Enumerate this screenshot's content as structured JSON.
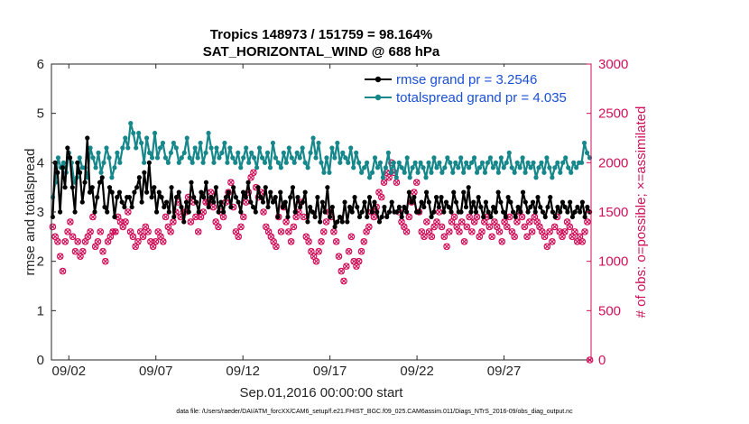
{
  "chart_data": {
    "type": "line",
    "title_line1": "Tropics 148973 / 151759 = 98.164%",
    "title_line2": "SAT_HORIZONTAL_WIND @ 688 hPa",
    "xlabel": "Sep.01,2016 00:00:00 start",
    "ylabel_left": "rmse and totalspread",
    "ylabel_right": "# of obs: o=possible; ×=assimilated",
    "xlim": [
      0,
      31
    ],
    "ylim_left": [
      0,
      6
    ],
    "ylim_right": [
      0,
      3000
    ],
    "x_tick_positions": [
      1,
      6,
      11,
      16,
      21,
      26
    ],
    "x_tick_labels": [
      "09/02",
      "09/07",
      "09/12",
      "09/17",
      "09/22",
      "09/27"
    ],
    "y_left_ticks": [
      "0",
      "1",
      "2",
      "3",
      "4",
      "5",
      "6"
    ],
    "y_right_ticks": [
      "0",
      "500",
      "1000",
      "1500",
      "2000",
      "2500",
      "3000"
    ],
    "footnote": "data file: /Users/raeder/DAI/ATM_forcXX/CAM6_setup/f.e21.FHIST_BGC.f09_025.CAM6assim.011/Diags_NTrS_2016-09/obs_diag_output.nc",
    "series": [
      {
        "name": "rmse grand pr = 3.2546",
        "color": "#000000",
        "axis": "left",
        "values": [
          2.9,
          4.0,
          3.8,
          3.0,
          3.9,
          3.5,
          4.3,
          4.1,
          3.5,
          3.0,
          4.0,
          3.8,
          3.2,
          3.6,
          4.5,
          3.4,
          3.5,
          3.0,
          3.3,
          3.6,
          3.7,
          3.1,
          3.0,
          3.5,
          3.4,
          2.9,
          3.3,
          3.4,
          3.2,
          3.1,
          3.3,
          3.3,
          3.1,
          3.4,
          3.5,
          3.7,
          3.2,
          3.8,
          3.4,
          4.0,
          3.3,
          3.5,
          3.0,
          3.4,
          3.3,
          3.1,
          3.2,
          3.0,
          3.5,
          2.9,
          3.3,
          3.4,
          3.1,
          2.8,
          3.2,
          3.0,
          3.6,
          3.3,
          3.2,
          3.0,
          3.4,
          3.3,
          3.6,
          3.1,
          3.3,
          3.2,
          3.5,
          3.0,
          3.2,
          3.0,
          3.3,
          3.4,
          3.1,
          3.5,
          3.3,
          3.2,
          3.0,
          3.4,
          3.3,
          3.6,
          3.2,
          3.1,
          3.0,
          3.5,
          3.3,
          3.2,
          3.5,
          3.1,
          3.4,
          3.2,
          3.3,
          2.9,
          3.4,
          3.1,
          3.2,
          2.9,
          3.3,
          3.5,
          3.0,
          3.3,
          3.1,
          3.2,
          3.4,
          2.8,
          3.1,
          3.0,
          2.9,
          3.3,
          2.8,
          3.2,
          3.0,
          3.5,
          2.9,
          3.1,
          2.7,
          2.8,
          2.9,
          2.8,
          3.2,
          2.8,
          3.1,
          3.0,
          3.3,
          3.1,
          2.9,
          3.0,
          3.2,
          2.9,
          3.3,
          3.0,
          3.2,
          3.0,
          2.8,
          2.9,
          3.1,
          2.9,
          3.0,
          3.2,
          3.0,
          3.0,
          3.1,
          2.9,
          3.1,
          3.0,
          3.4,
          3.2,
          3.3,
          3.0,
          3.0,
          3.2,
          3.1,
          3.4,
          3.2,
          2.9,
          3.0,
          3.3,
          3.1,
          3.3,
          3.0,
          3.2,
          3.1,
          3.0,
          3.4,
          3.2,
          3.0,
          3.0,
          3.4,
          3.1,
          3.5,
          3.0,
          3.2,
          3.0,
          3.3,
          3.1,
          2.9,
          3.2,
          3.0,
          2.9,
          3.1,
          3.0,
          3.4,
          3.2,
          3.0,
          2.9,
          3.3,
          3.2,
          3.0,
          2.9,
          3.1,
          3.0,
          3.4,
          3.2,
          3.0,
          3.1,
          3.2,
          3.0,
          3.3,
          3.1,
          3.0,
          2.9,
          3.1,
          3.3,
          3.0,
          2.9,
          3.1,
          3.0,
          3.2,
          3.1,
          3.0,
          3.2,
          2.9,
          3.0,
          3.1,
          3.0,
          3.2,
          2.9,
          3.1,
          3.0
        ]
      },
      {
        "name": "totalspread grand pr = 4.035",
        "color": "#16878a",
        "axis": "left",
        "values": [
          3.3,
          3.6,
          4.1,
          3.9,
          4.0,
          3.8,
          4.2,
          4.0,
          3.6,
          3.7,
          4.1,
          3.9,
          3.9,
          3.7,
          4.3,
          4.1,
          3.9,
          4.2,
          3.8,
          4.0,
          4.3,
          4.1,
          3.7,
          3.9,
          4.2,
          4.0,
          4.3,
          4.5,
          4.3,
          4.8,
          4.6,
          4.3,
          4.6,
          4.4,
          4.0,
          4.5,
          4.2,
          4.1,
          4.6,
          4.1,
          4.3,
          4.4,
          4.1,
          4.0,
          4.2,
          4.4,
          4.3,
          4.0,
          4.1,
          4.2,
          4.5,
          4.1,
          4.0,
          4.3,
          4.1,
          4.4,
          4.0,
          4.2,
          4.6,
          4.3,
          4.0,
          4.3,
          4.1,
          4.2,
          4.4,
          4.0,
          4.3,
          4.1,
          4.0,
          4.2,
          3.9,
          4.1,
          4.3,
          4.0,
          4.2,
          4.1,
          3.9,
          4.3,
          4.1,
          4.0,
          4.2,
          3.9,
          4.4,
          4.1,
          4.0,
          3.9,
          4.2,
          4.0,
          4.3,
          4.1,
          4.0,
          4.2,
          4.1,
          4.3,
          4.0,
          3.9,
          4.2,
          4.5,
          4.1,
          4.4,
          4.0,
          3.8,
          4.1,
          3.8,
          4.3,
          4.1,
          4.4,
          4.0,
          4.2,
          4.1,
          4.0,
          4.3,
          3.9,
          4.2,
          4.0,
          3.8,
          3.9,
          4.0,
          3.7,
          3.8,
          4.1,
          3.9,
          4.0,
          3.7,
          3.9,
          4.2,
          3.8,
          4.0,
          3.7,
          4.0,
          3.9,
          3.8,
          4.1,
          3.7,
          3.9,
          4.0,
          3.8,
          4.0,
          3.9,
          3.7,
          4.0,
          3.8,
          4.1,
          3.9,
          4.0,
          3.8,
          3.9,
          4.1,
          4.0,
          3.8,
          4.0,
          3.9,
          4.1,
          3.8,
          4.0,
          3.9,
          4.0,
          4.1,
          3.8,
          3.9,
          4.0,
          3.8,
          4.0,
          4.1,
          3.9,
          4.0,
          3.8,
          4.1,
          3.9,
          4.0,
          4.2,
          3.9,
          3.8,
          4.0,
          3.9,
          4.1,
          3.8,
          4.0,
          3.9,
          4.0,
          3.7,
          3.9,
          4.0,
          3.8,
          4.1,
          3.9,
          3.7,
          3.9,
          4.0,
          3.8,
          4.0,
          4.1,
          3.9,
          3.8,
          4.0,
          3.9,
          4.0,
          4.0,
          4.4,
          4.2,
          4.1
        ]
      },
      {
        "name": "possible observations",
        "color": "#d0105a",
        "axis": "right",
        "values": [
          1350,
          1250,
          1200,
          1050,
          900,
          1200,
          1300,
          1400,
          1250,
          1100,
          1200,
          1050,
          1100,
          1200,
          1250,
          1300,
          1450,
          1150,
          1200,
          1300,
          1100,
          1000,
          1200,
          1250,
          1300,
          1300,
          1450,
          1400,
          1350,
          1400,
          1500,
          1300,
          1250,
          1150,
          1200,
          1300,
          1250,
          1350,
          1300,
          1200,
          1150,
          1200,
          1300,
          1250,
          1200,
          1450,
          1350,
          1300,
          1400,
          1500,
          1600,
          1450,
          1500,
          1500,
          1650,
          1400,
          1600,
          1450,
          1300,
          1450,
          1500,
          1600,
          1600,
          1700,
          1550,
          1400,
          1350,
          1500,
          1450,
          1600,
          1700,
          1800,
          1550,
          1300,
          1250,
          1350,
          1450,
          1600,
          1700,
          1850,
          1900,
          1750,
          1650,
          1700,
          1500,
          1350,
          1300,
          1250,
          1200,
          1150,
          1450,
          1300,
          1550,
          1400,
          1300,
          1200,
          1350,
          1450,
          1500,
          1600,
          1450,
          1250,
          1200,
          1100,
          1050,
          1000,
          1100,
          1200,
          1300,
          1400,
          1500,
          1450,
          1300,
          1200,
          1050,
          900,
          800,
          950,
          1100,
          1250,
          1000,
          950,
          1000,
          1100,
          1200,
          1300,
          1350,
          1500,
          1450,
          1550,
          1700,
          1650,
          1800,
          1900,
          1850,
          2000,
          1900,
          1800,
          1500,
          1400,
          1350,
          1300,
          1450,
          1600,
          1700,
          1800,
          1500,
          1300,
          1250,
          1400,
          1300,
          1250,
          1350,
          1400,
          1500,
          1350,
          1250,
          1150,
          1300,
          1400,
          1450,
          1350,
          1300,
          1400,
          1200,
          1350,
          1450,
          1300,
          1400,
          1450,
          1250,
          1300,
          1400,
          1450,
          1350,
          1250,
          1400,
          1350,
          1300,
          1200,
          1400,
          1350,
          1450,
          1300,
          1250,
          1400,
          1500,
          1450,
          1350,
          1250,
          1400,
          1300,
          1450,
          1400,
          1350,
          1300,
          1250,
          1150,
          1300,
          1200,
          1350,
          1450,
          1300,
          1250,
          1300,
          1400,
          1350,
          1250,
          1300,
          1200,
          1250,
          1200,
          1300,
          1400,
          0
        ]
      }
    ]
  }
}
